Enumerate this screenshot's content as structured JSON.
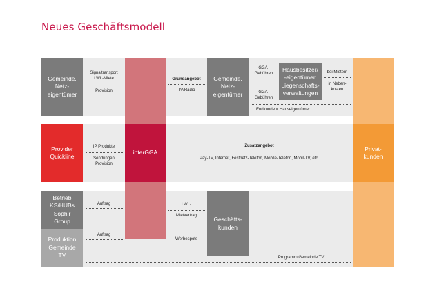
{
  "title": "Neues Geschäftsmodell",
  "boxes": {
    "gemeinde_left": "Gemeinde,\nNetz-\neigentümer",
    "provider": "Provider\nQuickline",
    "betrieb": "Betrieb\nKS/HUBs\nSophir\nGroup",
    "produktion": "Produktion\nGemeinde\nTV",
    "intergga": "interGGA",
    "gemeinde_mid": "Gemeinde,\nNetz-\neigentümer",
    "hausbesitzer": "Hausbesitzer/\n-eigentümer,\nLiegenschafts-\nverwaltungen",
    "geschaeftskunden": "Geschäfts-\nkunden",
    "privatkunden": "Privat-\nkunden"
  },
  "labels": {
    "signaltransport": "Signaltransport\nLWL-Miete",
    "provision_1": "Provision",
    "grundangebot": "Grundangebot",
    "tv_radio": "TV/Radio",
    "gga_gebuehren_1": "GGA-\nGebühren",
    "gga_gebuehren_2": "GGA-\nGebühren",
    "bei_mietern": "bei Mietern",
    "in_nebenkosten": "in Neben-\nkosten",
    "endkunde": "Endkunde = Hauseigentümer",
    "ip_produkte": "IP Produkte",
    "sendungen_provision": "Sendungen\nProvision",
    "zusatzangebot": "Zusatzangebot",
    "zusatz_list": "Pay-TV, Internet, Festnetz-Telefon, Mobile-Telefon, Mobil-TV, etc.",
    "auftrag_1": "Auftrag",
    "auftrag_2": "Auftrag",
    "lwl": "LWL-",
    "mietvertrag": "Mietvertrag",
    "werbespots": "Werbespots",
    "programm": "Programm Gemeinde TV"
  },
  "colors": {
    "accent": "#c8174b",
    "provider_red": "#e32b2b",
    "intergga": "#c0143c",
    "intergga_column": "#d2757b",
    "privat": "#f39a36",
    "privat_column": "#f7b772",
    "band": "#ebebeb",
    "dark_box": "#7b7b7b",
    "light_box": "#a8a8a8"
  }
}
